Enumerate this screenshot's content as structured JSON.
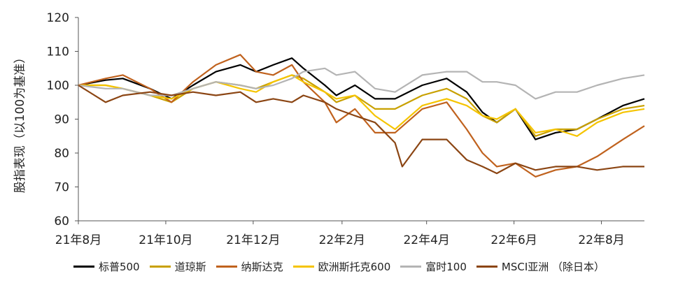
{
  "chart_data": {
    "type": "line",
    "title": "",
    "xlabel": "",
    "ylabel": "股指表现（以100为基准）",
    "ylim": [
      60,
      120
    ],
    "yticks": [
      60,
      70,
      80,
      90,
      100,
      110,
      120
    ],
    "xlim": [
      "2021-08-01",
      "2022-08-31"
    ],
    "xticks": [
      {
        "date": "2021-08-01",
        "label": "21年8月"
      },
      {
        "date": "2021-10-01",
        "label": "21年10月"
      },
      {
        "date": "2021-12-01",
        "label": "21年12月"
      },
      {
        "date": "2022-02-01",
        "label": "22年2月"
      },
      {
        "date": "2022-04-01",
        "label": "22年4月"
      },
      {
        "date": "2022-06-01",
        "label": "22年6月"
      },
      {
        "date": "2022-08-01",
        "label": "22年8月"
      }
    ],
    "grid": false,
    "legend_position": "bottom",
    "series": [
      {
        "name": "标普500",
        "color": "#000000",
        "x": [
          "2021-08-01",
          "2021-08-20",
          "2021-09-01",
          "2021-09-20",
          "2021-10-05",
          "2021-10-20",
          "2021-11-05",
          "2021-11-22",
          "2021-12-03",
          "2021-12-15",
          "2021-12-28",
          "2022-01-05",
          "2022-01-20",
          "2022-01-28",
          "2022-02-10",
          "2022-02-24",
          "2022-03-10",
          "2022-03-29",
          "2022-04-15",
          "2022-04-29",
          "2022-05-10",
          "2022-05-20",
          "2022-06-02",
          "2022-06-16",
          "2022-06-30",
          "2022-07-15",
          "2022-07-29",
          "2022-08-16",
          "2022-08-31"
        ],
        "values": [
          100,
          101.5,
          102,
          99,
          96,
          100,
          104,
          106,
          104,
          106,
          108,
          105,
          100,
          97,
          100,
          96,
          96,
          100,
          102,
          98,
          92,
          89,
          93,
          84,
          86,
          87,
          90,
          94,
          96
        ]
      },
      {
        "name": "道琼斯",
        "color": "#C8A000",
        "x": [
          "2021-08-01",
          "2021-08-20",
          "2021-09-01",
          "2021-09-20",
          "2021-10-05",
          "2021-10-20",
          "2021-11-05",
          "2021-11-22",
          "2021-12-03",
          "2021-12-15",
          "2021-12-28",
          "2022-01-05",
          "2022-01-20",
          "2022-01-28",
          "2022-02-10",
          "2022-02-24",
          "2022-03-10",
          "2022-03-29",
          "2022-04-15",
          "2022-04-29",
          "2022-05-10",
          "2022-05-20",
          "2022-06-02",
          "2022-06-16",
          "2022-06-30",
          "2022-07-15",
          "2022-07-29",
          "2022-08-16",
          "2022-08-31"
        ],
        "values": [
          100,
          100,
          99,
          97,
          95,
          99,
          101,
          100,
          99,
          101,
          103,
          102,
          98,
          95,
          97,
          93,
          93,
          97,
          99,
          96,
          91,
          89,
          93,
          85,
          87,
          87,
          90,
          93,
          94
        ]
      },
      {
        "name": "纳斯达克",
        "color": "#C0621E",
        "x": [
          "2021-08-01",
          "2021-08-20",
          "2021-09-01",
          "2021-09-20",
          "2021-10-05",
          "2021-10-20",
          "2021-11-05",
          "2021-11-22",
          "2021-12-03",
          "2021-12-15",
          "2021-12-28",
          "2022-01-05",
          "2022-01-20",
          "2022-01-28",
          "2022-02-10",
          "2022-02-24",
          "2022-03-10",
          "2022-03-29",
          "2022-04-15",
          "2022-04-29",
          "2022-05-10",
          "2022-05-20",
          "2022-06-02",
          "2022-06-16",
          "2022-06-30",
          "2022-07-15",
          "2022-07-29",
          "2022-08-16",
          "2022-08-31"
        ],
        "values": [
          100,
          102,
          103,
          99,
          95,
          101,
          106,
          109,
          104,
          103,
          106,
          101,
          95,
          89,
          93,
          86,
          86,
          93,
          95,
          87,
          80,
          76,
          77,
          73,
          75,
          76,
          79,
          84,
          88
        ]
      },
      {
        "name": "欧洲斯托克600",
        "color": "#F5C400",
        "x": [
          "2021-08-01",
          "2021-08-20",
          "2021-09-01",
          "2021-09-20",
          "2021-10-05",
          "2021-10-20",
          "2021-11-05",
          "2021-11-22",
          "2021-12-03",
          "2021-12-15",
          "2021-12-28",
          "2022-01-05",
          "2022-01-20",
          "2022-01-28",
          "2022-02-10",
          "2022-02-24",
          "2022-03-10",
          "2022-03-29",
          "2022-04-15",
          "2022-04-29",
          "2022-05-10",
          "2022-05-20",
          "2022-06-02",
          "2022-06-16",
          "2022-06-30",
          "2022-07-15",
          "2022-07-29",
          "2022-08-16",
          "2022-08-31"
        ],
        "values": [
          100,
          100,
          99,
          97,
          96,
          99,
          101,
          99,
          98,
          101,
          103,
          101,
          98,
          96,
          97,
          91,
          87,
          94,
          96,
          94,
          91,
          90,
          93,
          86,
          87,
          85,
          89,
          92,
          93
        ]
      },
      {
        "name": "富时100",
        "color": "#B4B4B4",
        "x": [
          "2021-08-01",
          "2021-08-20",
          "2021-09-01",
          "2021-09-20",
          "2021-10-05",
          "2021-10-20",
          "2021-11-05",
          "2021-11-22",
          "2021-12-03",
          "2021-12-15",
          "2021-12-28",
          "2022-01-05",
          "2022-01-20",
          "2022-01-28",
          "2022-02-10",
          "2022-02-24",
          "2022-03-10",
          "2022-03-29",
          "2022-04-15",
          "2022-04-29",
          "2022-05-10",
          "2022-05-20",
          "2022-06-02",
          "2022-06-16",
          "2022-06-30",
          "2022-07-15",
          "2022-07-29",
          "2022-08-16",
          "2022-08-31"
        ],
        "values": [
          100,
          99,
          99,
          97,
          97,
          99,
          101,
          100,
          99,
          100,
          102,
          104,
          105,
          103,
          104,
          99,
          98,
          103,
          104,
          104,
          101,
          101,
          100,
          96,
          98,
          98,
          100,
          102,
          103
        ]
      },
      {
        "name": "MSCI亚洲 （除日本）",
        "color": "#8B4513",
        "x": [
          "2021-08-01",
          "2021-08-20",
          "2021-09-01",
          "2021-09-20",
          "2021-10-05",
          "2021-10-20",
          "2021-11-05",
          "2021-11-22",
          "2021-12-03",
          "2021-12-15",
          "2021-12-28",
          "2022-01-05",
          "2022-01-20",
          "2022-01-28",
          "2022-02-10",
          "2022-02-24",
          "2022-03-10",
          "2022-03-15",
          "2022-03-29",
          "2022-04-15",
          "2022-04-29",
          "2022-05-10",
          "2022-05-20",
          "2022-06-02",
          "2022-06-16",
          "2022-06-30",
          "2022-07-15",
          "2022-07-29",
          "2022-08-16",
          "2022-08-31"
        ],
        "values": [
          100,
          95,
          97,
          98,
          97,
          98,
          97,
          98,
          95,
          96,
          95,
          97,
          95,
          93,
          91,
          89,
          83,
          76,
          84,
          84,
          78,
          76,
          74,
          77,
          75,
          76,
          76,
          75,
          76,
          76
        ]
      }
    ]
  }
}
